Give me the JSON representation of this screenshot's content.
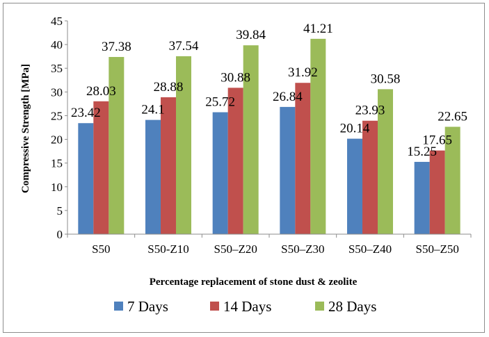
{
  "chart_data": {
    "type": "bar",
    "xlabel": "Percentage replacement of stone dust & zeolite",
    "ylabel": "Compressive Strength [MPa]",
    "ylim": [
      0,
      45
    ],
    "ytick_step": 5,
    "grid": false,
    "legend_position": "bottom",
    "categories": [
      "S50",
      "S50-Z10",
      "S50–Z20",
      "S50–Z30",
      "S50–Z40",
      "S50–Z50"
    ],
    "series": [
      {
        "name": "7 Days",
        "color": "#4f81bd",
        "values": [
          23.42,
          24.1,
          25.72,
          26.84,
          20.14,
          15.25
        ],
        "labels": [
          "23.42",
          "24.1",
          "25.72",
          "26.84",
          "20.14",
          "15.25"
        ]
      },
      {
        "name": "14 Days",
        "color": "#c0504d",
        "values": [
          28.03,
          28.88,
          30.88,
          31.92,
          23.93,
          17.65
        ],
        "labels": [
          "28.03",
          "28.88",
          "30.88",
          "31.92",
          "23.93",
          "17.65"
        ]
      },
      {
        "name": "28 Days",
        "color": "#9bbb59",
        "values": [
          37.38,
          37.54,
          39.84,
          41.21,
          30.58,
          22.65
        ],
        "labels": [
          "37.38",
          "37.54",
          "39.84",
          "41.21",
          "30.58",
          "22.65"
        ]
      }
    ]
  }
}
